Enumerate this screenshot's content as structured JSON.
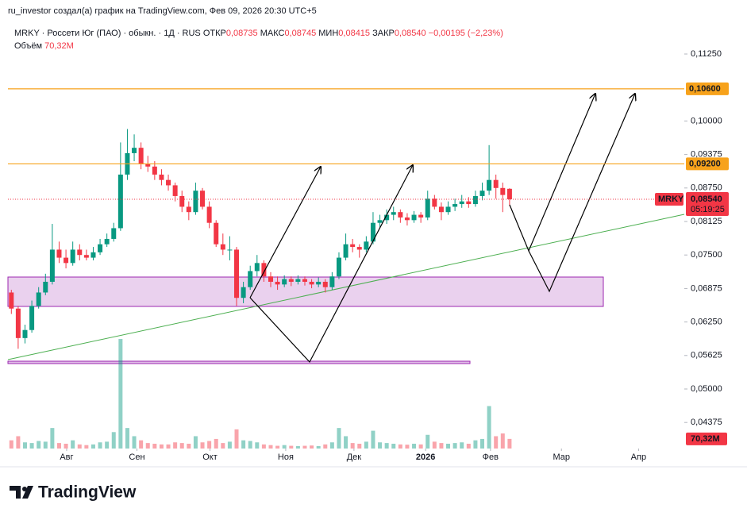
{
  "chart_data": {
    "type": "candlestick",
    "credit": "ru_investor создал(а) график на TradingView.com, Фев 09, 2026 20:30 UTC+5",
    "symbol": "MRKY · Россети Юг (ПАО) · обыкн. · 1Д · RUS",
    "open_label": "ОТКР",
    "open": "0,08735",
    "high_label": "МАКС",
    "high": "0,08745",
    "low_label": "МИН",
    "low": "0,08415",
    "close_label": "ЗАКР",
    "close": "0,08540",
    "change": "−0,00195 (−2,23%)",
    "volume_label": "Объём",
    "volume": "70,32M",
    "logo": "TradingView",
    "up_color": "#089981",
    "down_color": "#f23645",
    "ylim": [
      0.03889,
      0.11665
    ],
    "yticks": [
      {
        "value": 0.1125,
        "label": "0,11250"
      },
      {
        "value": 0.1,
        "label": "0,10000"
      },
      {
        "value": 0.09375,
        "label": "0,09375"
      },
      {
        "value": 0.0875,
        "label": "0,08750"
      },
      {
        "value": 0.08125,
        "label": "0,08125"
      },
      {
        "value": 0.075,
        "label": "0,07500"
      },
      {
        "value": 0.06875,
        "label": "0,06875"
      },
      {
        "value": 0.0625,
        "label": "0,06250"
      },
      {
        "value": 0.05625,
        "label": "0,05625"
      },
      {
        "value": 0.05,
        "label": "0,05000"
      },
      {
        "value": 0.04375,
        "label": "0,04375"
      }
    ],
    "xlim": [
      -0.5,
      98.6
    ],
    "xticks": [
      {
        "value": 8.1,
        "label": "Авг"
      },
      {
        "value": 18.4,
        "label": "Сен"
      },
      {
        "value": 29.1,
        "label": "Окт"
      },
      {
        "value": 40.2,
        "label": "Ноя"
      },
      {
        "value": 50.2,
        "label": "Дек"
      },
      {
        "value": 60.7,
        "label": "2026"
      },
      {
        "value": 70.2,
        "label": "Фев"
      },
      {
        "value": 80.6,
        "label": "Мар"
      },
      {
        "value": 91.9,
        "label": "Апр"
      }
    ],
    "levels": [
      {
        "value": 0.106,
        "label": "0,10600",
        "color": "#f7a21b"
      },
      {
        "value": 0.092,
        "label": "0,09200",
        "color": "#f7a21b"
      }
    ],
    "price_label": {
      "value": 0.0854,
      "label": "0,08540",
      "symbol": "MRKY",
      "countdown": "05:19:25"
    },
    "volume_label_badge": {
      "value": 70.32,
      "label": "70,32M"
    },
    "ohlc": [
      [
        0.068,
        0.0685,
        0.064,
        0.065
      ],
      [
        0.065,
        0.0655,
        0.0575,
        0.0595
      ],
      [
        0.0595,
        0.062,
        0.0585,
        0.061
      ],
      [
        0.061,
        0.0665,
        0.0605,
        0.0655
      ],
      [
        0.0655,
        0.069,
        0.065,
        0.068
      ],
      [
        0.068,
        0.0715,
        0.0675,
        0.07
      ],
      [
        0.07,
        0.0808,
        0.0695,
        0.076
      ],
      [
        0.076,
        0.0775,
        0.0735,
        0.0745
      ],
      [
        0.0745,
        0.076,
        0.0725,
        0.0735
      ],
      [
        0.0735,
        0.0775,
        0.073,
        0.076
      ],
      [
        0.076,
        0.077,
        0.074,
        0.075
      ],
      [
        0.075,
        0.076,
        0.074,
        0.0745
      ],
      [
        0.0745,
        0.0765,
        0.074,
        0.0755
      ],
      [
        0.0755,
        0.078,
        0.075,
        0.077
      ],
      [
        0.077,
        0.079,
        0.0765,
        0.078
      ],
      [
        0.078,
        0.081,
        0.0775,
        0.08
      ],
      [
        0.08,
        0.096,
        0.0795,
        0.09
      ],
      [
        0.09,
        0.0985,
        0.089,
        0.094
      ],
      [
        0.094,
        0.0975,
        0.0925,
        0.095
      ],
      [
        0.095,
        0.096,
        0.091,
        0.092
      ],
      [
        0.092,
        0.0935,
        0.0905,
        0.0915
      ],
      [
        0.0915,
        0.0925,
        0.089,
        0.09
      ],
      [
        0.09,
        0.091,
        0.088,
        0.089
      ],
      [
        0.089,
        0.09,
        0.087,
        0.088
      ],
      [
        0.088,
        0.0885,
        0.085,
        0.086
      ],
      [
        0.086,
        0.087,
        0.083,
        0.084
      ],
      [
        0.084,
        0.085,
        0.0815,
        0.083
      ],
      [
        0.083,
        0.0885,
        0.0825,
        0.087
      ],
      [
        0.087,
        0.0875,
        0.0835,
        0.084
      ],
      [
        0.084,
        0.085,
        0.08,
        0.081
      ],
      [
        0.081,
        0.0815,
        0.0765,
        0.077
      ],
      [
        0.077,
        0.079,
        0.075,
        0.076
      ],
      [
        0.076,
        0.0785,
        0.074,
        0.076
      ],
      [
        0.076,
        0.0765,
        0.0655,
        0.067
      ],
      [
        0.067,
        0.07,
        0.066,
        0.069
      ],
      [
        0.069,
        0.073,
        0.0685,
        0.072
      ],
      [
        0.072,
        0.075,
        0.071,
        0.0735
      ],
      [
        0.0735,
        0.074,
        0.07,
        0.071
      ],
      [
        0.071,
        0.0718,
        0.069,
        0.07
      ],
      [
        0.07,
        0.071,
        0.0685,
        0.0695
      ],
      [
        0.0695,
        0.0712,
        0.069,
        0.0705
      ],
      [
        0.0705,
        0.071,
        0.0692,
        0.07
      ],
      [
        0.07,
        0.0712,
        0.0695,
        0.0705
      ],
      [
        0.0705,
        0.071,
        0.0693,
        0.07
      ],
      [
        0.07,
        0.0705,
        0.0688,
        0.0695
      ],
      [
        0.0695,
        0.0708,
        0.069,
        0.07
      ],
      [
        0.07,
        0.0705,
        0.068,
        0.069
      ],
      [
        0.069,
        0.0718,
        0.0685,
        0.071
      ],
      [
        0.071,
        0.0755,
        0.0705,
        0.0745
      ],
      [
        0.0745,
        0.079,
        0.074,
        0.077
      ],
      [
        0.077,
        0.078,
        0.0755,
        0.0765
      ],
      [
        0.0765,
        0.077,
        0.0745,
        0.076
      ],
      [
        0.076,
        0.0785,
        0.0755,
        0.0775
      ],
      [
        0.0775,
        0.083,
        0.077,
        0.081
      ],
      [
        0.081,
        0.0825,
        0.08,
        0.0815
      ],
      [
        0.0815,
        0.0835,
        0.0808,
        0.0825
      ],
      [
        0.0825,
        0.084,
        0.0815,
        0.083
      ],
      [
        0.083,
        0.0835,
        0.081,
        0.082
      ],
      [
        0.082,
        0.0828,
        0.0805,
        0.0815
      ],
      [
        0.0815,
        0.0832,
        0.081,
        0.0825
      ],
      [
        0.0825,
        0.083,
        0.081,
        0.082
      ],
      [
        0.082,
        0.087,
        0.0815,
        0.0855
      ],
      [
        0.0855,
        0.0862,
        0.0835,
        0.084
      ],
      [
        0.084,
        0.0848,
        0.0815,
        0.083
      ],
      [
        0.083,
        0.085,
        0.0825,
        0.084
      ],
      [
        0.084,
        0.0855,
        0.0832,
        0.0845
      ],
      [
        0.0845,
        0.0862,
        0.0838,
        0.085
      ],
      [
        0.085,
        0.0858,
        0.0838,
        0.0845
      ],
      [
        0.0845,
        0.087,
        0.084,
        0.086
      ],
      [
        0.086,
        0.0885,
        0.0852,
        0.087
      ],
      [
        0.087,
        0.0955,
        0.0862,
        0.089
      ],
      [
        0.089,
        0.09,
        0.0855,
        0.0875
      ],
      [
        0.0875,
        0.0885,
        0.083,
        0.0862
      ],
      [
        0.08735,
        0.08745,
        0.08415,
        0.0854
      ]
    ],
    "volumes": [
      60,
      90,
      45,
      40,
      55,
      50,
      150,
      40,
      35,
      60,
      30,
      25,
      30,
      45,
      50,
      120,
      800,
      150,
      90,
      60,
      40,
      35,
      30,
      30,
      45,
      40,
      35,
      90,
      45,
      55,
      70,
      40,
      50,
      140,
      60,
      55,
      45,
      30,
      25,
      20,
      25,
      20,
      18,
      20,
      22,
      18,
      30,
      45,
      150,
      90,
      40,
      35,
      50,
      130,
      45,
      40,
      35,
      30,
      28,
      35,
      30,
      100,
      50,
      40,
      35,
      40,
      45,
      35,
      60,
      70,
      310,
      90,
      110,
      70.32
    ]
  }
}
